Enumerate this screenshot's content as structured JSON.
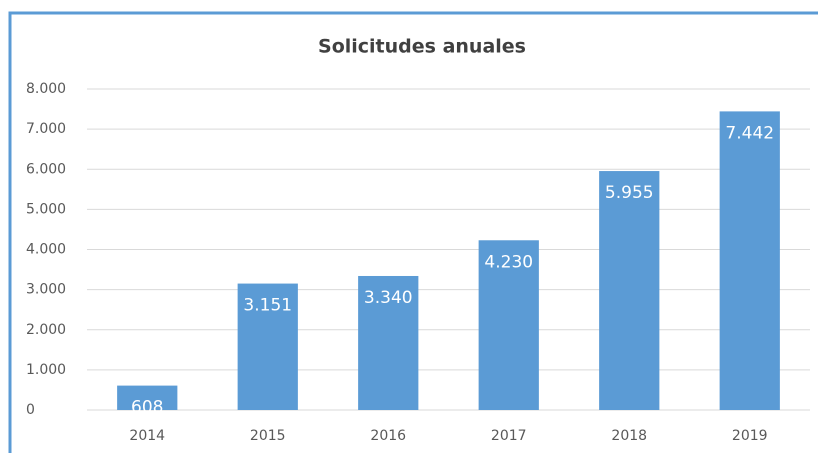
{
  "chart_data": {
    "type": "bar",
    "title": "Solicitudes anuales",
    "categories": [
      "2014",
      "2015",
      "2016",
      "2017",
      "2018",
      "2019"
    ],
    "values": [
      608,
      3151,
      3340,
      4230,
      5955,
      7442
    ],
    "value_labels": [
      "608",
      "3.151",
      "3.340",
      "4.230",
      "5.955",
      "7.442"
    ],
    "color": "#5b9bd5",
    "ylim": [
      0,
      8000
    ],
    "yticks": [
      0,
      {
        "value": 1000,
        "label": "1.000"
      },
      {
        "value": 2000,
        "label": "2.000"
      },
      {
        "value": 3000,
        "label": "3.000"
      },
      {
        "value": 4000,
        "label": "4.000"
      },
      {
        "value": 5000,
        "label": "5.000"
      },
      {
        "value": 6000,
        "label": "6.000"
      },
      {
        "value": 7000,
        "label": "7.000"
      },
      {
        "value": 8000,
        "label": "8.000"
      }
    ],
    "grid": true
  }
}
